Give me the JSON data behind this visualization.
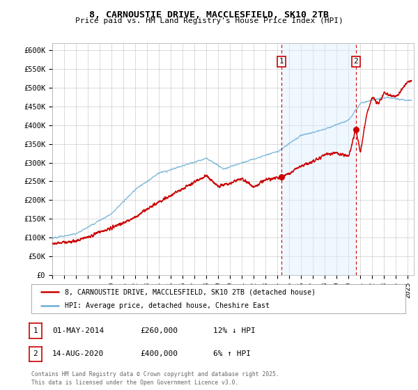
{
  "title1": "8, CARNOUSTIE DRIVE, MACCLESFIELD, SK10 2TB",
  "title2": "Price paid vs. HM Land Registry's House Price Index (HPI)",
  "xlim_start": 1995.0,
  "xlim_end": 2025.5,
  "ylim_min": 0,
  "ylim_max": 620000,
  "yticks": [
    0,
    50000,
    100000,
    150000,
    200000,
    250000,
    300000,
    350000,
    400000,
    450000,
    500000,
    550000,
    600000
  ],
  "ytick_labels": [
    "£0",
    "£50K",
    "£100K",
    "£150K",
    "£200K",
    "£250K",
    "£300K",
    "£350K",
    "£400K",
    "£450K",
    "£500K",
    "£550K",
    "£600K"
  ],
  "hpi_color": "#6baed6",
  "price_color": "#cc0000",
  "marker1_date": 2014.33,
  "marker2_date": 2020.62,
  "legend_line1": "8, CARNOUSTIE DRIVE, MACCLESFIELD, SK10 2TB (detached house)",
  "legend_line2": "HPI: Average price, detached house, Cheshire East",
  "footnote1": "Contains HM Land Registry data © Crown copyright and database right 2025.",
  "footnote2": "This data is licensed under the Open Government Licence v3.0.",
  "background_color": "#ffffff",
  "grid_color": "#cccccc",
  "span_color": "#ddeeff"
}
